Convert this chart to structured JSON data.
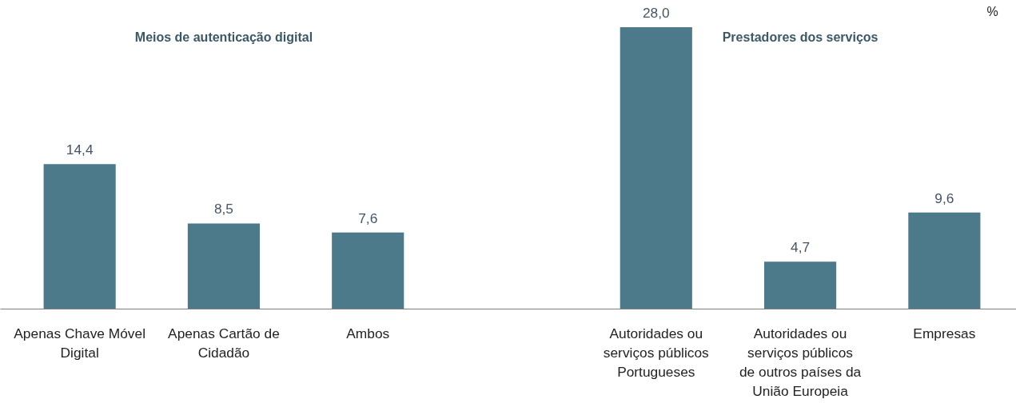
{
  "chart_data": {
    "type": "bar",
    "categories": [
      "Apenas Chave Móvel Digital",
      "Apenas Cartão de Cidadão",
      "Ambos",
      null,
      "Autoridades ou serviços públicos Portugueses",
      "Autoridades ou serviços públicos de outros países da União Europeia",
      "Empresas"
    ],
    "values": [
      14.4,
      8.5,
      7.6,
      null,
      28.0,
      4.7,
      9.6
    ],
    "value_labels": [
      "14,4",
      "8,5",
      "7,6",
      null,
      "28,0",
      "4,7",
      "9,6"
    ],
    "color": "#4d7a8a",
    "annotations": [
      "Meios de autenticação digital",
      "Prestadores dos serviços",
      "%"
    ]
  }
}
